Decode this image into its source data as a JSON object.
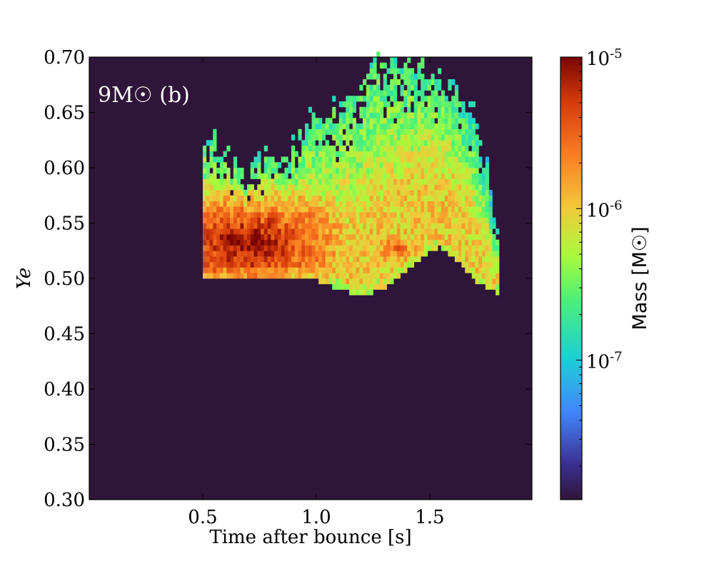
{
  "chart_data": {
    "type": "heatmap",
    "title": "",
    "panel_label": "9M☉ (b)",
    "xlabel": "Time after bounce [s]",
    "ylabel": "Ye",
    "xlim": [
      0.0,
      1.95
    ],
    "ylim": [
      0.3,
      0.7
    ],
    "x_ticks": [
      0.5,
      1.0,
      1.5
    ],
    "x_tick_labels": [
      "0.5",
      "1.0",
      "1.5"
    ],
    "y_ticks": [
      0.3,
      0.35,
      0.4,
      0.45,
      0.5,
      0.55,
      0.6,
      0.65,
      0.7
    ],
    "y_tick_labels": [
      "0.30",
      "0.35",
      "0.40",
      "0.45",
      "0.50",
      "0.55",
      "0.60",
      "0.65",
      "0.70"
    ],
    "background_color": "#2f1539",
    "colormap": "jet-like (dark purple → blue → cyan → green → yellow → orange → dark red)",
    "color_scale": "log",
    "color_range": [
      1.2e-08,
      1e-05
    ],
    "colorbar": {
      "label": "Mass [M☉]",
      "tick_values": [
        1e-07,
        1e-06,
        1e-05
      ],
      "tick_labels": [
        "10-7",
        "10-6",
        "10-5"
      ],
      "placement": "right"
    },
    "grid": false,
    "populated_region": {
      "time_range": [
        0.5,
        1.8
      ],
      "lower_ye_envelope": [
        {
          "t": 0.5,
          "ye": 0.5
        },
        {
          "t": 0.6,
          "ye": 0.502
        },
        {
          "t": 0.8,
          "ye": 0.504
        },
        {
          "t": 1.0,
          "ye": 0.5
        },
        {
          "t": 1.1,
          "ye": 0.492
        },
        {
          "t": 1.2,
          "ye": 0.486
        },
        {
          "t": 1.3,
          "ye": 0.494
        },
        {
          "t": 1.4,
          "ye": 0.51
        },
        {
          "t": 1.5,
          "ye": 0.527
        },
        {
          "t": 1.55,
          "ye": 0.53
        },
        {
          "t": 1.62,
          "ye": 0.518
        },
        {
          "t": 1.7,
          "ye": 0.5
        },
        {
          "t": 1.8,
          "ye": 0.488
        }
      ],
      "upper_ye_envelope": [
        {
          "t": 0.5,
          "ye": 0.625
        },
        {
          "t": 0.55,
          "ye": 0.63
        },
        {
          "t": 0.62,
          "ye": 0.605
        },
        {
          "t": 0.7,
          "ye": 0.59
        },
        {
          "t": 0.78,
          "ye": 0.612
        },
        {
          "t": 0.85,
          "ye": 0.6
        },
        {
          "t": 0.9,
          "ye": 0.625
        },
        {
          "t": 1.0,
          "ye": 0.65
        },
        {
          "t": 1.1,
          "ye": 0.66
        },
        {
          "t": 1.2,
          "ye": 0.672
        },
        {
          "t": 1.3,
          "ye": 0.7
        },
        {
          "t": 1.4,
          "ye": 0.69
        },
        {
          "t": 1.5,
          "ye": 0.685
        },
        {
          "t": 1.6,
          "ye": 0.675
        },
        {
          "t": 1.7,
          "ye": 0.65
        },
        {
          "t": 1.75,
          "ye": 0.61
        },
        {
          "t": 1.78,
          "ye": 0.56
        }
      ],
      "peak_mass_region": {
        "t_range": [
          0.5,
          0.9
        ],
        "ye_range": [
          0.51,
          0.56
        ],
        "mass": 1e-05
      },
      "secondary_peak": {
        "t_range": [
          1.25,
          1.45
        ],
        "ye_range": [
          0.515,
          0.54
        ],
        "mass": 3e-06
      },
      "high_ye_tail_mass": 1e-07
    }
  }
}
